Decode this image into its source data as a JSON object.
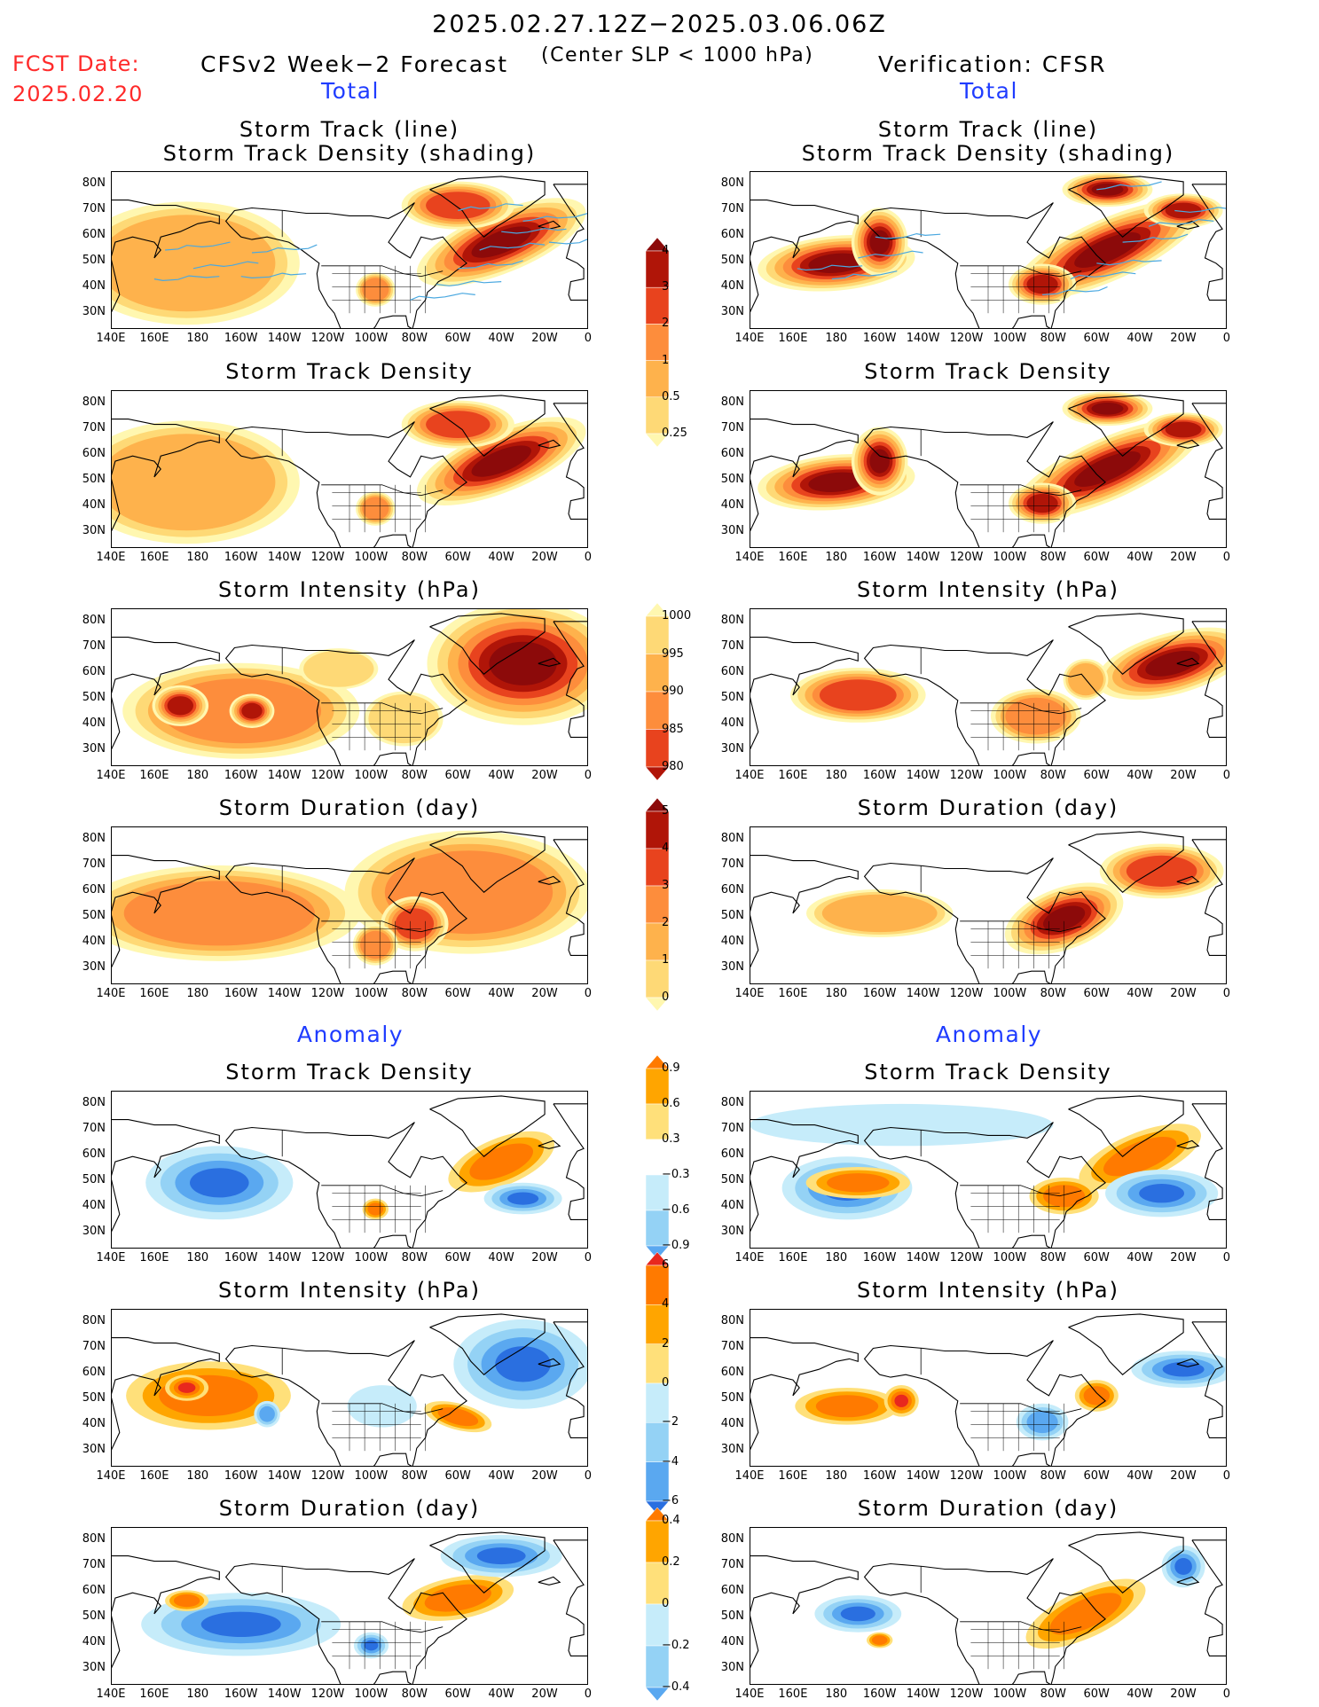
{
  "header": {
    "date_range": "2025.02.27.12Z−2025.03.06.06Z",
    "subtitle": "(Center SLP < 1000 hPa)",
    "fcst_label": "FCST Date:",
    "fcst_date": "2025.02.20",
    "left_model": "CFSv2 Week−2 Forecast",
    "right_model": "Verification: CFSR"
  },
  "sections": {
    "total": "Total",
    "anomaly": "Anomaly"
  },
  "panel_titles": {
    "track_line": "Storm Track (line)",
    "track_shading": "Storm Track Density (shading)",
    "density": "Storm Track Density",
    "intensity": "Storm Intensity (hPa)",
    "duration": "Storm Duration (day)"
  },
  "axes": {
    "lat_labels": [
      "80N",
      "70N",
      "60N",
      "50N",
      "40N",
      "30N"
    ],
    "lon_labels": [
      "140E",
      "160E",
      "180",
      "160W",
      "140W",
      "120W",
      "100W",
      "80W",
      "60W",
      "40W",
      "20W",
      "0"
    ]
  },
  "colorbars": {
    "density": [
      "4",
      "3",
      "2",
      "1",
      "0.5",
      "0.25"
    ],
    "intensity": [
      "1000",
      "995",
      "990",
      "985",
      "980"
    ],
    "duration": [
      "5",
      "4",
      "3",
      "2",
      "1",
      "0"
    ],
    "density_anom": [
      "0.9",
      "0.6",
      "0.3",
      "−0.3",
      "−0.6",
      "−0.9"
    ],
    "intensity_anom": [
      "6",
      "4",
      "2",
      "0",
      "−2",
      "−4",
      "−6"
    ],
    "duration_anom": [
      "0.4",
      "0.2",
      "0",
      "−0.2",
      "−0.4"
    ]
  },
  "colors": {
    "seq": [
      "#fff7b0",
      "#fed976",
      "#feb24c",
      "#fd8d3c",
      "#e8431e",
      "#b01508",
      "#8c0a0a"
    ],
    "div_pos": [
      "#ffe07a",
      "#ffa500",
      "#ff7a00",
      "#e8281e"
    ],
    "div_neg": [
      "#c6ecfa",
      "#94d2f5",
      "#5aa8f0",
      "#2a6fe0"
    ],
    "track_line": "#4aa8e0"
  }
}
